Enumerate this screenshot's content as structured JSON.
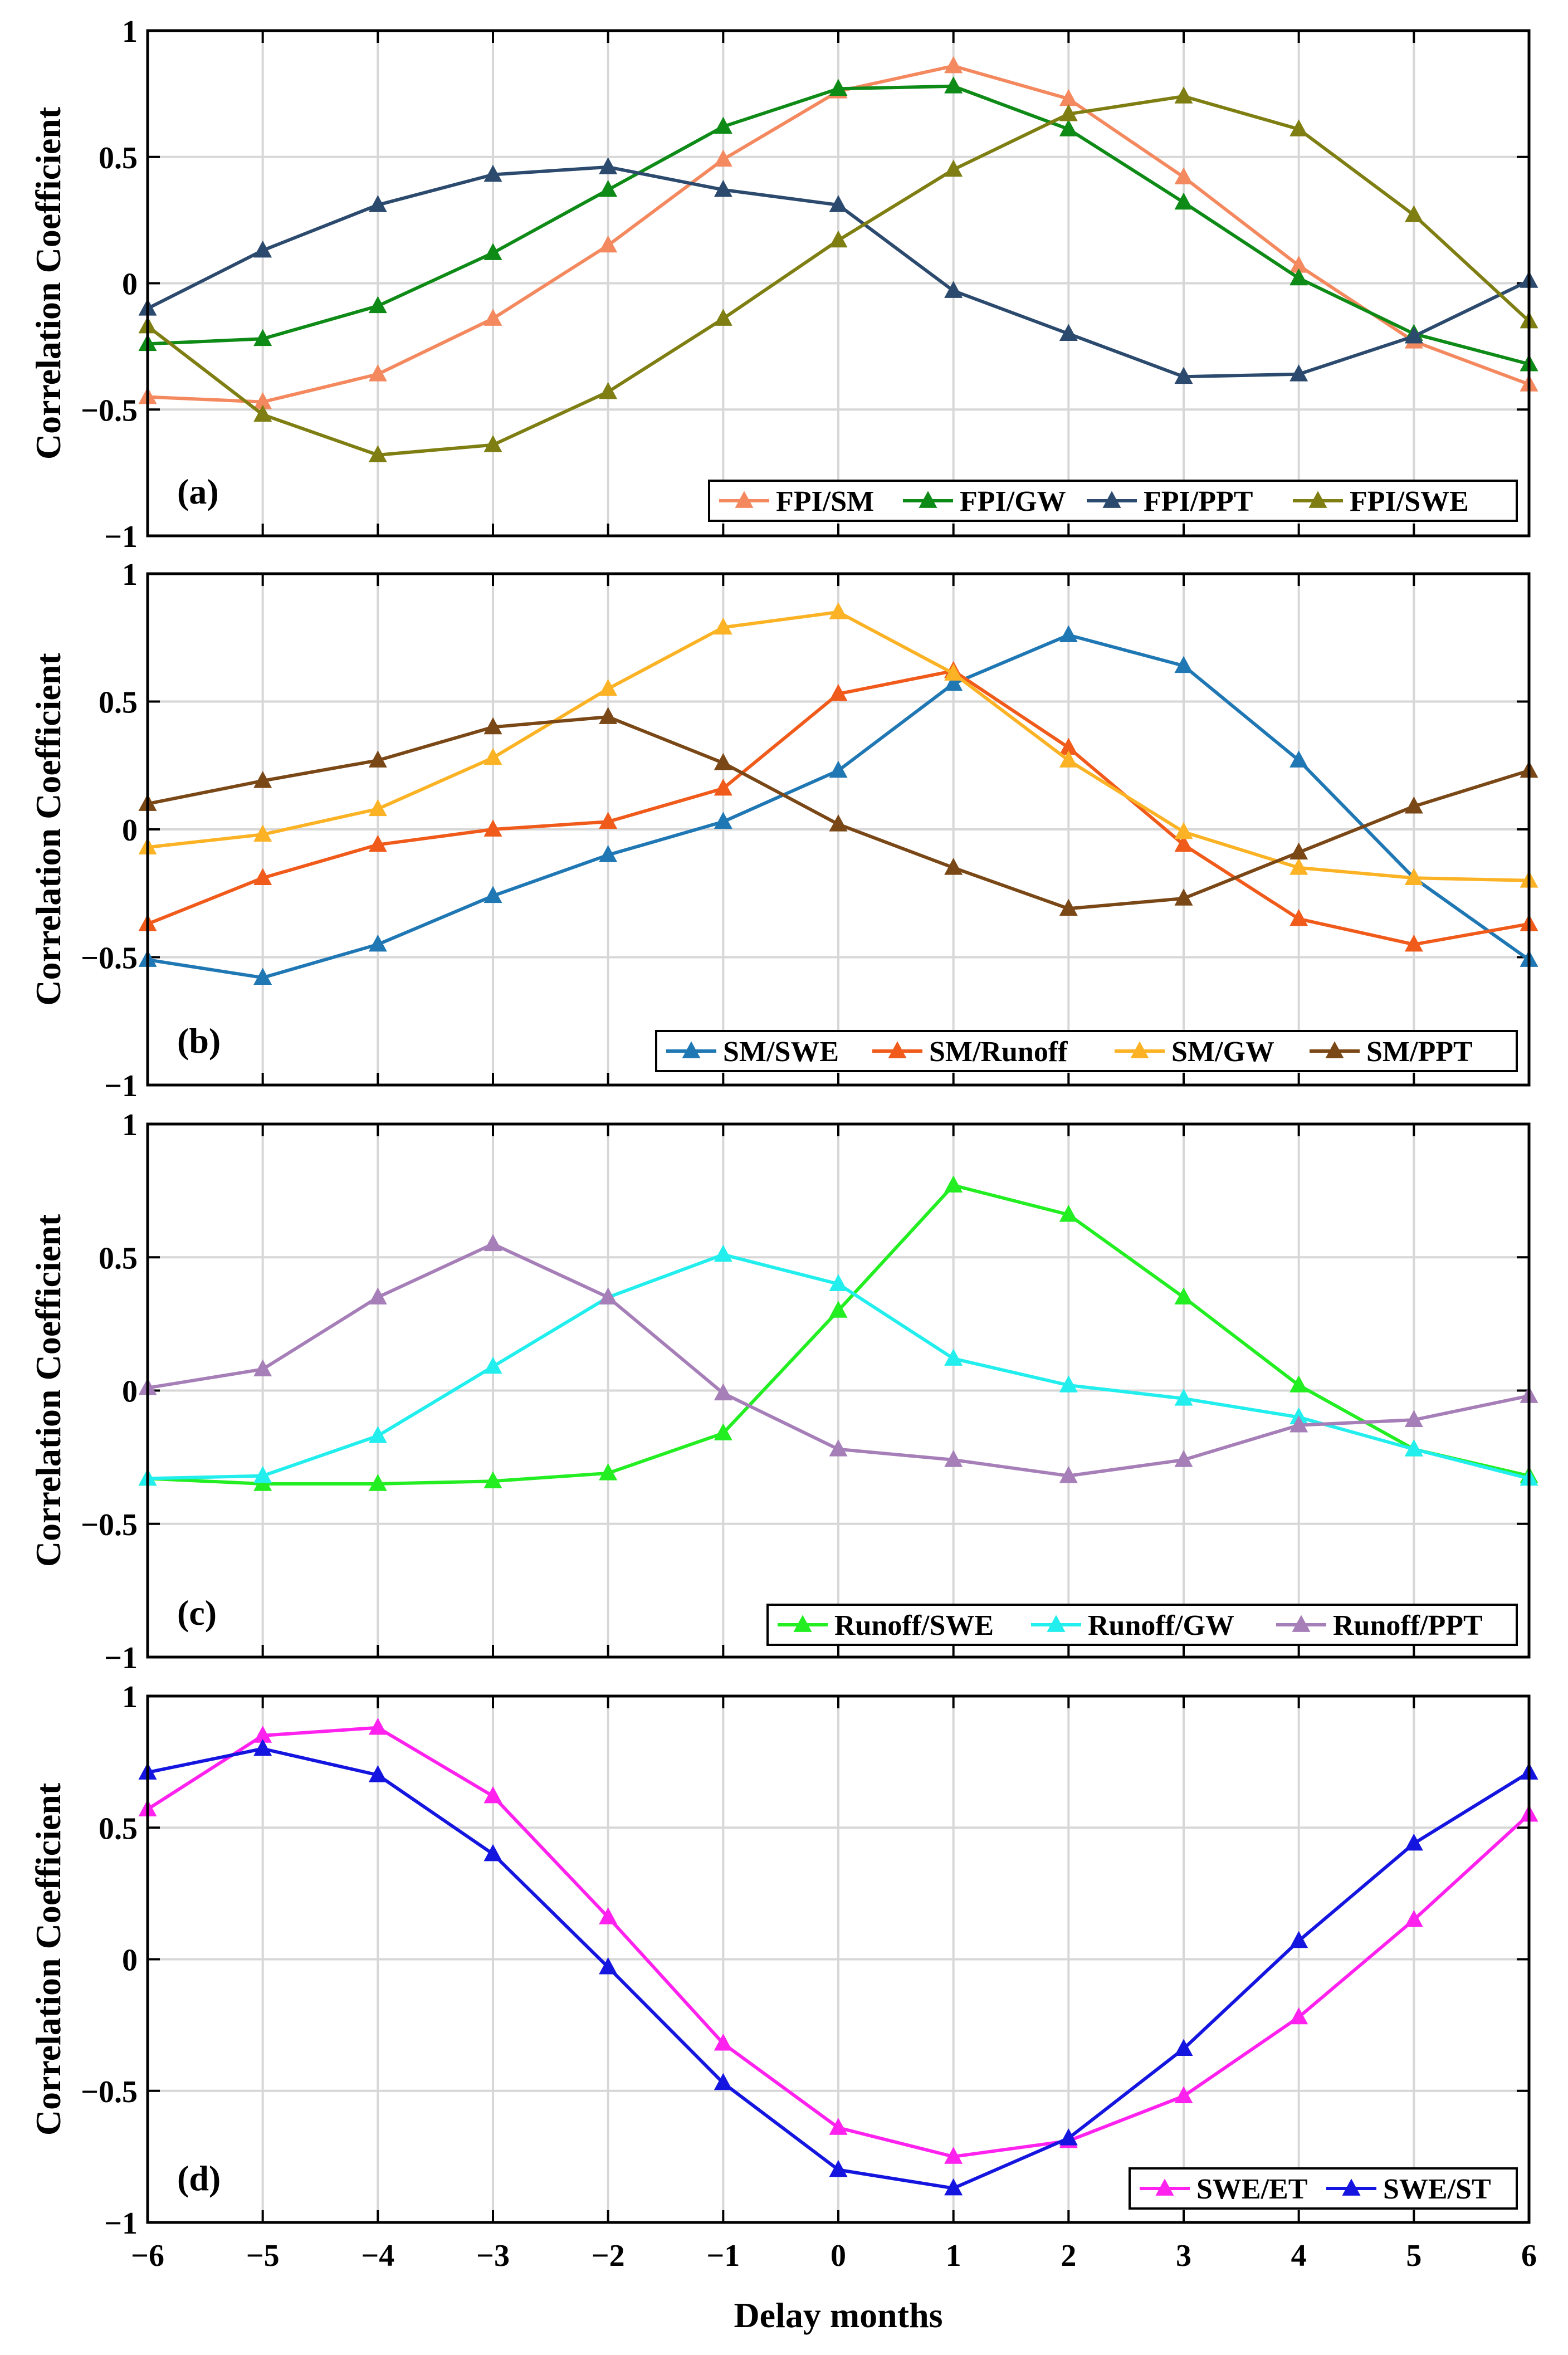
{
  "chart_data": [
    {
      "type": "line",
      "panel_label": "(a)",
      "ylabel": "Correlation Coefficient",
      "xlabel": "",
      "ylim": [
        -1,
        1
      ],
      "yticks": [
        "1",
        "0.5",
        "0",
        "−0.5",
        "−1"
      ],
      "x": [
        -6,
        -5,
        -4,
        -3,
        -2,
        -1,
        0,
        1,
        2,
        3,
        4,
        5,
        6
      ],
      "grid": true,
      "legend_position": "bottom-right",
      "series": [
        {
          "name": "FPI/SM",
          "color": "#F4895F",
          "values": [
            -0.45,
            -0.47,
            -0.36,
            -0.14,
            0.15,
            0.49,
            0.76,
            0.86,
            0.73,
            0.42,
            0.07,
            -0.23,
            -0.4
          ]
        },
        {
          "name": "FPI/GW",
          "color": "#0E8A16",
          "values": [
            -0.24,
            -0.22,
            -0.09,
            0.12,
            0.37,
            0.62,
            0.77,
            0.78,
            0.61,
            0.32,
            0.02,
            -0.2,
            -0.32
          ]
        },
        {
          "name": "FPI/PPT",
          "color": "#2C4A6E",
          "values": [
            -0.1,
            0.13,
            0.31,
            0.43,
            0.46,
            0.37,
            0.31,
            -0.03,
            -0.2,
            -0.37,
            -0.36,
            -0.21,
            0.01
          ]
        },
        {
          "name": "FPI/SWE",
          "color": "#7E7E12",
          "values": [
            -0.17,
            -0.52,
            -0.68,
            -0.64,
            -0.43,
            -0.14,
            0.17,
            0.45,
            0.67,
            0.74,
            0.61,
            0.27,
            -0.15
          ]
        }
      ]
    },
    {
      "type": "line",
      "panel_label": "(b)",
      "ylabel": "Correlation Coefficient",
      "xlabel": "",
      "ylim": [
        -1,
        1
      ],
      "yticks": [
        "1",
        "0.5",
        "0",
        "−0.5",
        "−1"
      ],
      "x": [
        -6,
        -5,
        -4,
        -3,
        -2,
        -1,
        0,
        1,
        2,
        3,
        4,
        5,
        6
      ],
      "grid": true,
      "legend_position": "bottom-right",
      "series": [
        {
          "name": "SM/SWE",
          "color": "#1F77B4",
          "values": [
            -0.51,
            -0.58,
            -0.45,
            -0.26,
            -0.1,
            0.03,
            0.23,
            0.57,
            0.76,
            0.64,
            0.27,
            -0.19,
            -0.51
          ]
        },
        {
          "name": "SM/Runoff",
          "color": "#F05A1A",
          "values": [
            -0.37,
            -0.19,
            -0.06,
            0.0,
            0.03,
            0.16,
            0.53,
            0.62,
            0.32,
            -0.06,
            -0.35,
            -0.45,
            -0.37
          ]
        },
        {
          "name": "SM/GW",
          "color": "#FBB325",
          "values": [
            -0.07,
            -0.02,
            0.08,
            0.28,
            0.55,
            0.79,
            0.85,
            0.61,
            0.27,
            -0.01,
            -0.15,
            -0.19,
            -0.2
          ]
        },
        {
          "name": "SM/PPT",
          "color": "#7A4716",
          "values": [
            0.1,
            0.19,
            0.27,
            0.4,
            0.44,
            0.26,
            0.02,
            -0.15,
            -0.31,
            -0.27,
            -0.09,
            0.09,
            0.23
          ]
        }
      ]
    },
    {
      "type": "line",
      "panel_label": "(c)",
      "ylabel": "Correlation Coefficient",
      "xlabel": "",
      "ylim": [
        -1,
        1
      ],
      "yticks": [
        "1",
        "0.5",
        "0",
        "−0.5",
        "−1"
      ],
      "x": [
        -6,
        -5,
        -4,
        -3,
        -2,
        -1,
        0,
        1,
        2,
        3,
        4,
        5,
        6
      ],
      "grid": true,
      "legend_position": "bottom-right",
      "series": [
        {
          "name": "Runoff/SWE",
          "color": "#22EE22",
          "values": [
            -0.33,
            -0.35,
            -0.35,
            -0.34,
            -0.31,
            -0.16,
            0.3,
            0.77,
            0.66,
            0.35,
            0.02,
            -0.22,
            -0.32
          ]
        },
        {
          "name": "Runoff/GW",
          "color": "#22EEEE",
          "values": [
            -0.33,
            -0.32,
            -0.17,
            0.09,
            0.35,
            0.51,
            0.4,
            0.12,
            0.02,
            -0.03,
            -0.1,
            -0.22,
            -0.33
          ]
        },
        {
          "name": "Runoff/PPT",
          "color": "#A67FB8",
          "values": [
            0.01,
            0.08,
            0.35,
            0.55,
            0.35,
            -0.01,
            -0.22,
            -0.26,
            -0.32,
            -0.26,
            -0.13,
            -0.11,
            -0.02
          ]
        }
      ]
    },
    {
      "type": "line",
      "panel_label": "(d)",
      "ylabel": "Correlation Coefficient",
      "xlabel": "Delay months",
      "ylim": [
        -1,
        1
      ],
      "yticks": [
        "1",
        "0.5",
        "0",
        "−0.5",
        "−1"
      ],
      "x": [
        -6,
        -5,
        -4,
        -3,
        -2,
        -1,
        0,
        1,
        2,
        3,
        4,
        5,
        6
      ],
      "xticks": [
        "−6",
        "−5",
        "−4",
        "−3",
        "−2",
        "−1",
        "0",
        "1",
        "2",
        "3",
        "4",
        "5",
        "6"
      ],
      "grid": true,
      "legend_position": "bottom-right",
      "series": [
        {
          "name": "SWE/ET",
          "color": "#FF22EE",
          "values": [
            0.57,
            0.85,
            0.88,
            0.62,
            0.16,
            -0.32,
            -0.64,
            -0.75,
            -0.69,
            -0.52,
            -0.22,
            0.15,
            0.55
          ]
        },
        {
          "name": "SWE/ST",
          "color": "#1515E0",
          "values": [
            0.71,
            0.8,
            0.7,
            0.4,
            -0.03,
            -0.47,
            -0.8,
            -0.87,
            -0.68,
            -0.34,
            0.07,
            0.44,
            0.71
          ]
        }
      ]
    }
  ]
}
